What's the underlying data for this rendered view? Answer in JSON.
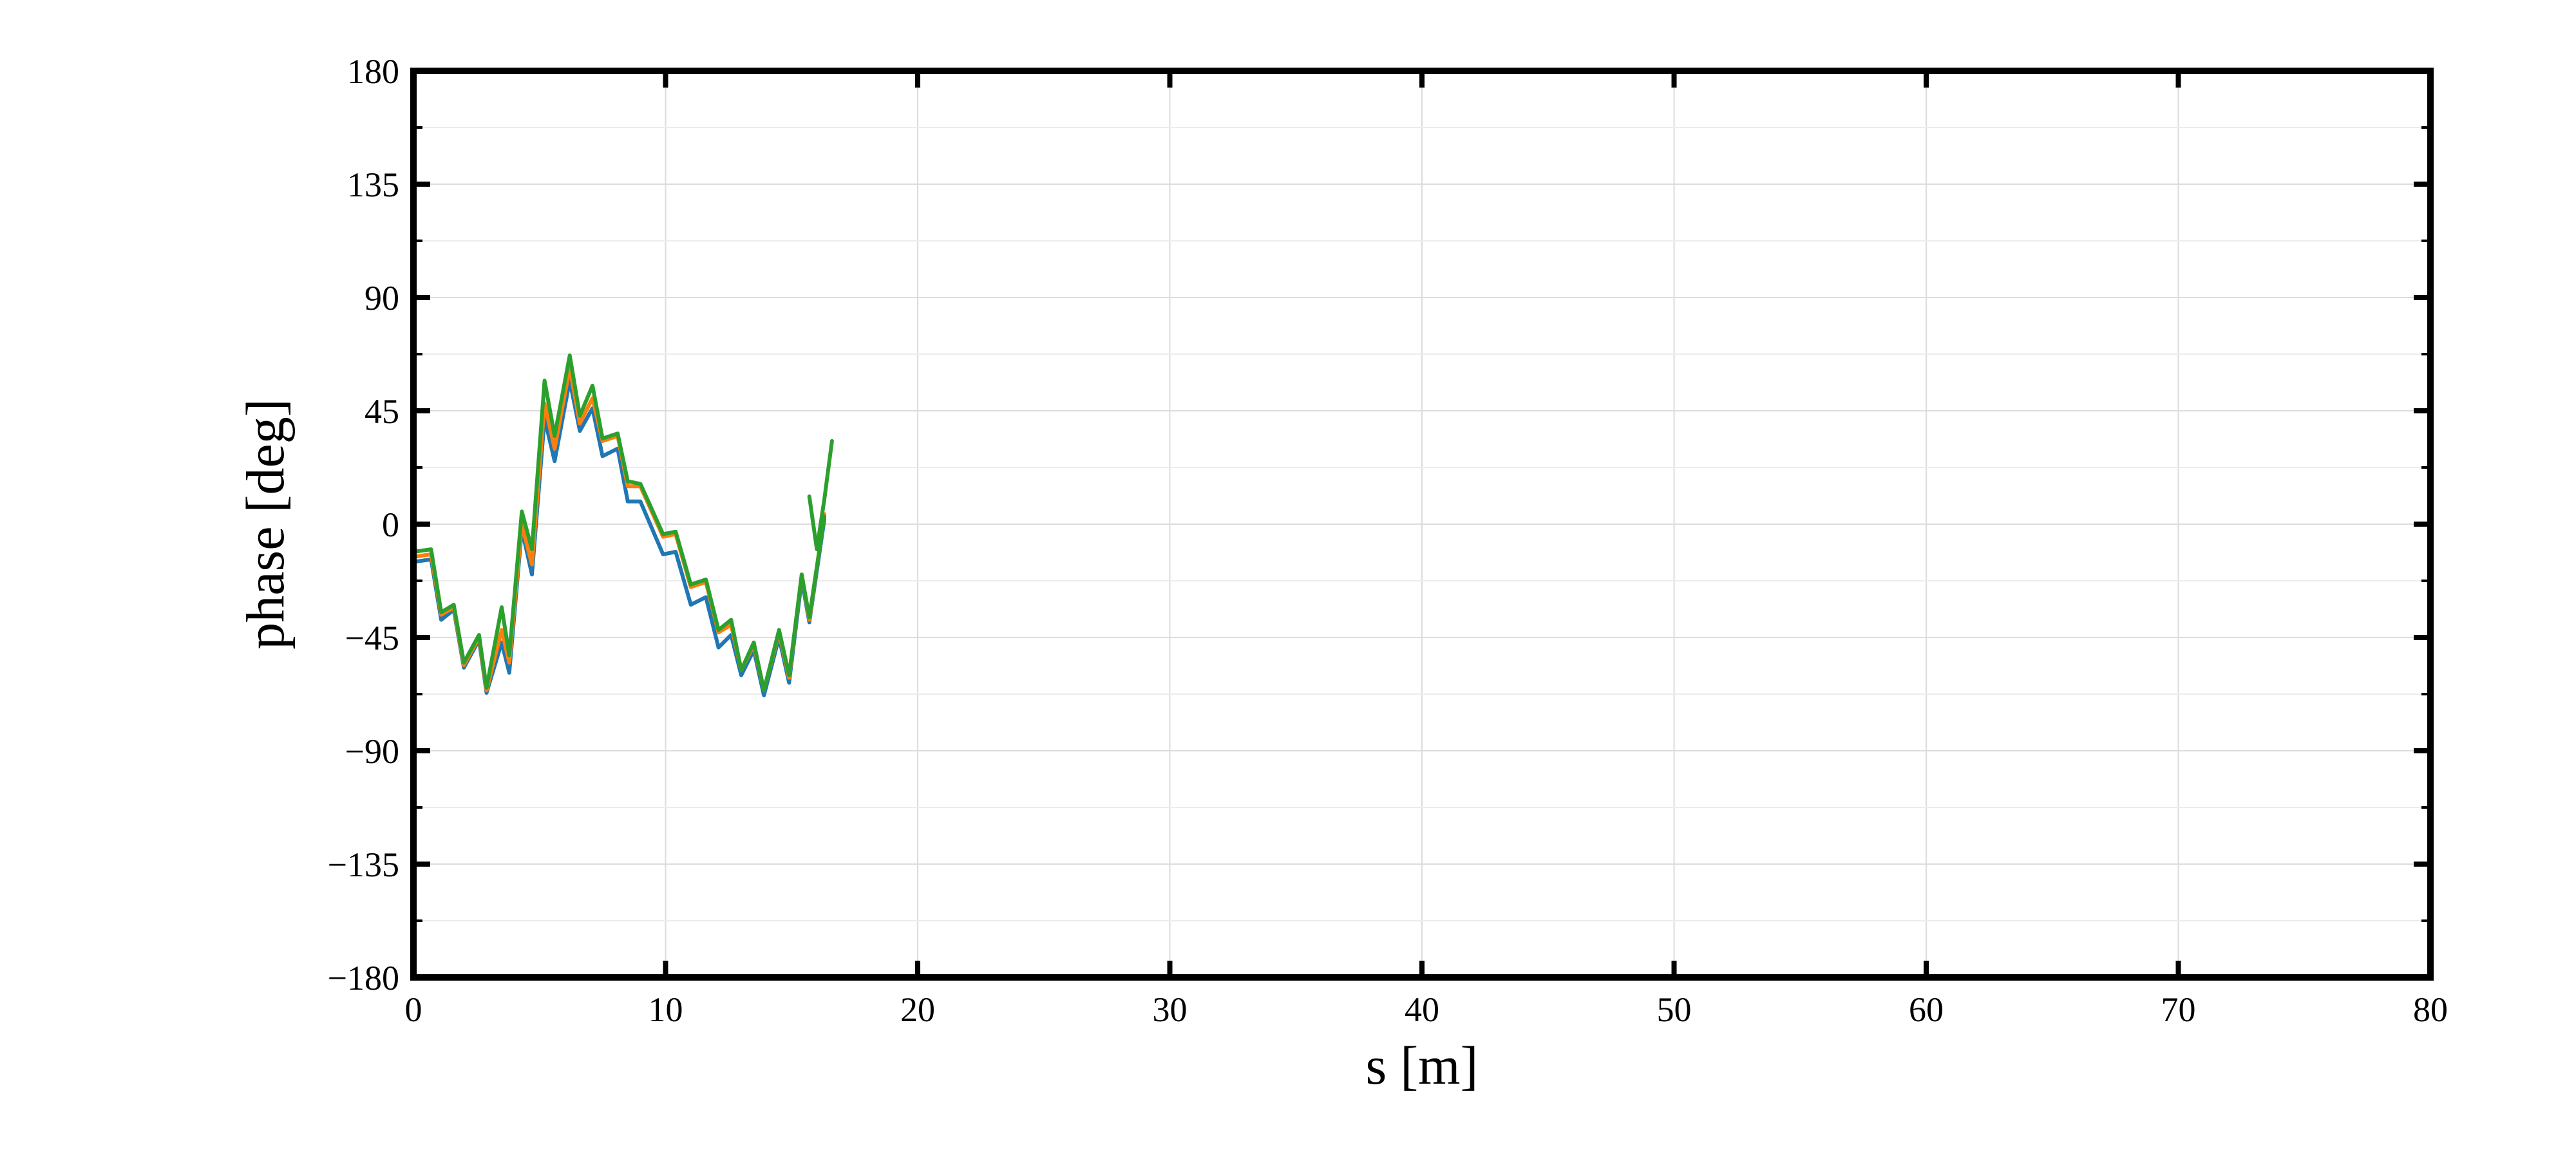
{
  "chart_data": {
    "type": "line",
    "xlabel": "s [m]",
    "ylabel": "phase [deg]",
    "xlim": [
      0,
      80
    ],
    "ylim": [
      -180,
      180
    ],
    "xticks": [
      0,
      10,
      20,
      30,
      40,
      50,
      60,
      70,
      80
    ],
    "xtick_labels": [
      "0",
      "10",
      "20",
      "30",
      "40",
      "50",
      "60",
      "70",
      "80"
    ],
    "yticks": [
      -180,
      -135,
      -90,
      -45,
      0,
      45,
      90,
      135,
      180
    ],
    "ytick_labels": [
      "−180",
      "−135",
      "−90",
      "−45",
      "0",
      "45",
      "90",
      "135",
      "180"
    ],
    "y_minor_ticks": [
      -157.5,
      -112.5,
      -67.5,
      -22.5,
      22.5,
      67.5,
      112.5,
      157.5
    ],
    "grid": true,
    "series": [
      {
        "color": "#1f77b4",
        "x": [
          0,
          0.7,
          1.1,
          1.6,
          2.0,
          2.6,
          2.9,
          3.5,
          3.8,
          4.3,
          4.7,
          5.2,
          5.6,
          6.2,
          6.6,
          7.1,
          7.5,
          8.1,
          8.5,
          9.0,
          9.9,
          10.4,
          11.0,
          11.6,
          12.1,
          12.6,
          13.0,
          13.5,
          13.9,
          14.5,
          14.9,
          15.4,
          15.7,
          16.3
        ],
        "y": [
          -15,
          -14,
          -38,
          -34,
          -57,
          -46,
          -67,
          -47,
          -59,
          -2,
          -20,
          42,
          25,
          57,
          37,
          46,
          27,
          30,
          9,
          9,
          -12,
          -11,
          -32,
          -29,
          -49,
          -44,
          -60,
          -50,
          -68,
          -45,
          -63,
          -22,
          -39,
          2
        ]
      },
      {
        "color": "#ff7f0e",
        "x": [
          0,
          0.7,
          1.1,
          1.6,
          2.0,
          2.6,
          2.9,
          3.5,
          3.8,
          4.3,
          4.7,
          5.2,
          5.6,
          6.2,
          6.6,
          7.1,
          7.5,
          8.1,
          8.5,
          9.0,
          9.9,
          10.4,
          11.0,
          11.6,
          12.1,
          12.6,
          13.0,
          13.5,
          13.9,
          14.5,
          14.9,
          15.4,
          15.7,
          16.3
        ],
        "y": [
          -13,
          -12,
          -36,
          -33,
          -56,
          -45,
          -66,
          -42,
          -55,
          0,
          -16,
          48,
          30,
          62,
          40,
          50,
          33,
          35,
          15,
          15,
          -5,
          -4,
          -25,
          -23,
          -43,
          -40,
          -58,
          -48,
          -66,
          -43,
          -61,
          -20,
          -38,
          4
        ]
      },
      {
        "color": "#2ca02c",
        "x": [
          0,
          0.7,
          1.1,
          1.6,
          2.0,
          2.6,
          2.9,
          3.5,
          3.8,
          4.3,
          4.7,
          5.2,
          5.6,
          6.2,
          6.6,
          7.1,
          7.5,
          8.1,
          8.5,
          9.0,
          9.9,
          10.4,
          11.0,
          11.6,
          12.1,
          12.6,
          13.0,
          13.5,
          13.9,
          14.5,
          14.9,
          15.4,
          15.7,
          16.3
        ],
        "y": [
          -11,
          -10,
          -35,
          -32,
          -55,
          -44,
          -65,
          -33,
          -52,
          5,
          -10,
          57,
          35,
          67,
          43,
          55,
          34,
          36,
          17,
          16,
          -4,
          -3,
          -24,
          -22,
          -42,
          -38,
          -58,
          -47,
          -66,
          -42,
          -60,
          -20,
          -37,
          3
        ]
      }
    ],
    "series_extra": [
      {
        "color": "#2ca02c",
        "x": [
          15.7,
          16.0,
          16.3,
          16.6
        ],
        "y": [
          11,
          -10,
          10,
          33
        ]
      }
    ]
  }
}
